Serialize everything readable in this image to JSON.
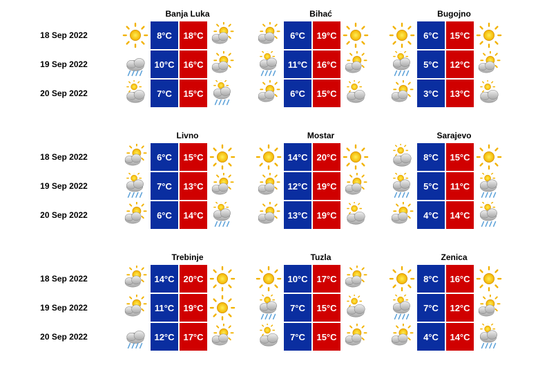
{
  "colors": {
    "low_bg": "#0a2ea0",
    "high_bg": "#d00000"
  },
  "dates": [
    "18 Sep 2022",
    "19 Sep 2022",
    "20 Sep 2022"
  ],
  "blocks": [
    {
      "cities": [
        {
          "name": "Banja Luka",
          "days": [
            {
              "icon1": "sun",
              "low": "8°C",
              "high": "18°C",
              "icon2": "partly"
            },
            {
              "icon1": "rain",
              "low": "10°C",
              "high": "16°C",
              "icon2": "partly"
            },
            {
              "icon1": "cloud",
              "low": "7°C",
              "high": "15°C",
              "icon2": "shower"
            }
          ]
        },
        {
          "name": "Bihać",
          "days": [
            {
              "icon1": "partly",
              "low": "6°C",
              "high": "19°C",
              "icon2": "sun"
            },
            {
              "icon1": "shower",
              "low": "11°C",
              "high": "16°C",
              "icon2": "partly"
            },
            {
              "icon1": "partly",
              "low": "6°C",
              "high": "15°C",
              "icon2": "cloud"
            }
          ]
        },
        {
          "name": "Bugojno",
          "days": [
            {
              "icon1": "sun",
              "low": "6°C",
              "high": "15°C",
              "icon2": "sun"
            },
            {
              "icon1": "shower",
              "low": "5°C",
              "high": "12°C",
              "icon2": "partly"
            },
            {
              "icon1": "partly",
              "low": "3°C",
              "high": "13°C",
              "icon2": "cloud"
            }
          ]
        }
      ]
    },
    {
      "cities": [
        {
          "name": "Livno",
          "days": [
            {
              "icon1": "partly",
              "low": "6°C",
              "high": "15°C",
              "icon2": "sun"
            },
            {
              "icon1": "shower",
              "low": "7°C",
              "high": "13°C",
              "icon2": "partly"
            },
            {
              "icon1": "partly",
              "low": "6°C",
              "high": "14°C",
              "icon2": "shower"
            }
          ]
        },
        {
          "name": "Mostar",
          "days": [
            {
              "icon1": "sun",
              "low": "14°C",
              "high": "20°C",
              "icon2": "sun"
            },
            {
              "icon1": "partly",
              "low": "12°C",
              "high": "19°C",
              "icon2": "partly"
            },
            {
              "icon1": "partly",
              "low": "13°C",
              "high": "19°C",
              "icon2": "cloud"
            }
          ]
        },
        {
          "name": "Sarajevo",
          "days": [
            {
              "icon1": "cloud",
              "low": "8°C",
              "high": "15°C",
              "icon2": "sun"
            },
            {
              "icon1": "shower",
              "low": "5°C",
              "high": "11°C",
              "icon2": "shower"
            },
            {
              "icon1": "partly",
              "low": "4°C",
              "high": "14°C",
              "icon2": "shower"
            }
          ]
        }
      ]
    },
    {
      "cities": [
        {
          "name": "Trebinje",
          "days": [
            {
              "icon1": "partly",
              "low": "14°C",
              "high": "20°C",
              "icon2": "sun"
            },
            {
              "icon1": "partly",
              "low": "11°C",
              "high": "19°C",
              "icon2": "sun"
            },
            {
              "icon1": "rain",
              "low": "12°C",
              "high": "17°C",
              "icon2": "partly"
            }
          ]
        },
        {
          "name": "Tuzla",
          "days": [
            {
              "icon1": "sun",
              "low": "10°C",
              "high": "17°C",
              "icon2": "partly"
            },
            {
              "icon1": "shower",
              "low": "7°C",
              "high": "15°C",
              "icon2": "cloud"
            },
            {
              "icon1": "cloud",
              "low": "7°C",
              "high": "15°C",
              "icon2": "partly"
            }
          ]
        },
        {
          "name": "Zenica",
          "days": [
            {
              "icon1": "sun",
              "low": "8°C",
              "high": "16°C",
              "icon2": "sun"
            },
            {
              "icon1": "shower",
              "low": "7°C",
              "high": "12°C",
              "icon2": "partly"
            },
            {
              "icon1": "partly",
              "low": "4°C",
              "high": "14°C",
              "icon2": "shower"
            }
          ]
        }
      ]
    }
  ]
}
